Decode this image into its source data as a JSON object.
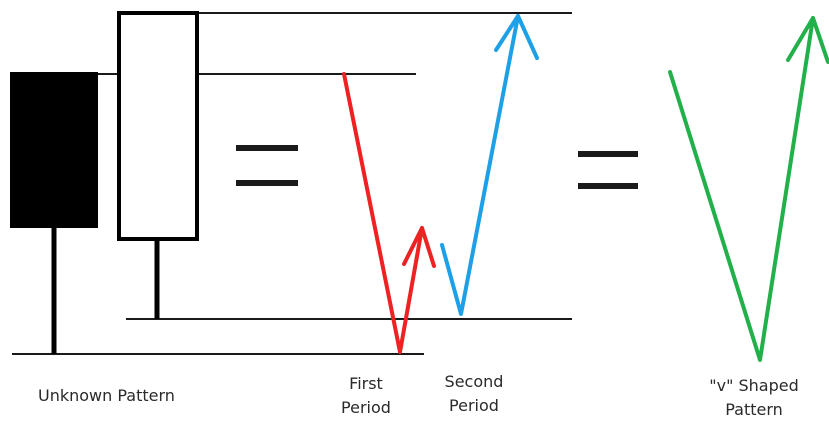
{
  "labels": {
    "unknown_pattern": "Unknown Pattern",
    "first_period": [
      "First",
      "Period"
    ],
    "second_period": [
      "Second",
      "Period"
    ],
    "v_shaped_pattern": [
      "\"v\" Shaped",
      "Pattern"
    ]
  },
  "colors": {
    "background": "#ffffff",
    "line": "#1a1a1a",
    "candle_bearish_fill": "#000000",
    "candle_bullish_fill": "#ffffff",
    "first_period": "#ee2222",
    "second_period": "#1ea0e6",
    "v_pattern": "#22b04a",
    "equals_sign": "#1a1a1a"
  }
}
